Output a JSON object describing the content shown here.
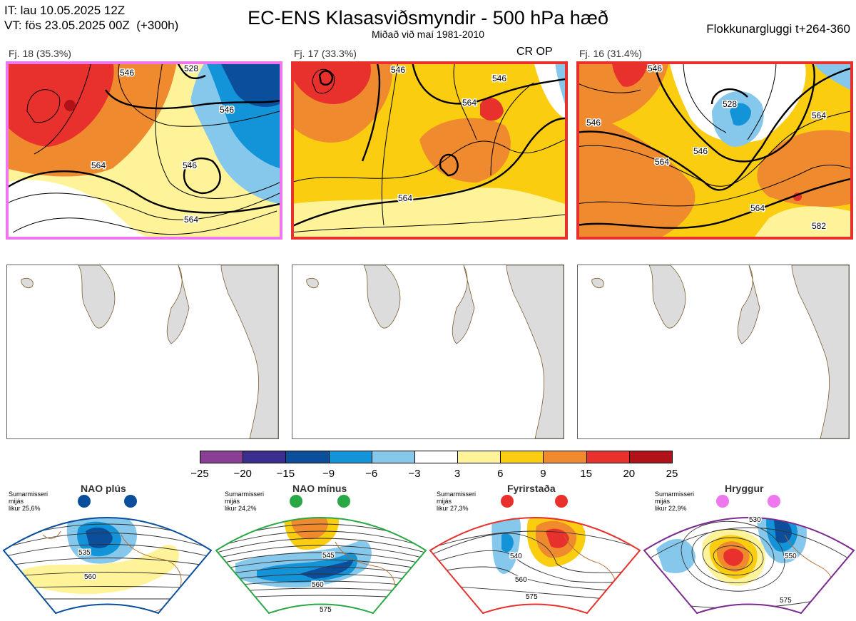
{
  "header": {
    "it_line": "IT: lau 10.05.2025 12Z",
    "vt_line": "VT: fös 23.05.2025 00Z  (+300h)",
    "title": "EC-ENS Klasasviðsmyndir - 500 hPa hæð",
    "subtitle": "Miðað við maí 1981-2010",
    "window_label": "Flokkunargluggi t+264-360"
  },
  "top_panels": [
    {
      "label": "Fj. 18 (35.3%)",
      "frame_color": "#ee77ee",
      "contours": [
        "546",
        "528",
        "546",
        "564",
        "546",
        "564"
      ]
    },
    {
      "label": "Fj. 17 (33.3%)",
      "frame_color": "#e8312d",
      "badge": "CR OP",
      "contours": [
        "546",
        "564",
        "546",
        "564"
      ]
    },
    {
      "label": "Fj. 16 (31.4%)",
      "frame_color": "#e8312d",
      "contours": [
        "546",
        "546",
        "528",
        "546",
        "564",
        "564",
        "582",
        "564"
      ]
    }
  ],
  "colorbar": {
    "colors": [
      "#8a3f96",
      "#3a2f8e",
      "#0b4f9c",
      "#1494d8",
      "#86c7ec",
      "#ffffff",
      "#fff39a",
      "#fbcd10",
      "#f08a2e",
      "#e8312d",
      "#b01218"
    ],
    "ticks": [
      "−25",
      "−20",
      "−15",
      "−9",
      "−6",
      "−3",
      "3",
      "6",
      "9",
      "15",
      "20",
      "25"
    ]
  },
  "regimes": [
    {
      "title": "NAO plús",
      "note": [
        "Sumarmisseri",
        "mijás",
        "likur 25,6%"
      ],
      "color": "#0b4f9c",
      "contours": [
        "535",
        "560"
      ]
    },
    {
      "title": "NAO mínus",
      "note": [
        "Sumarmisseri",
        "mijás",
        "likur 24,2%"
      ],
      "color": "#2aa845",
      "contours": [
        "545",
        "560",
        "575"
      ]
    },
    {
      "title": "Fyrirstaða",
      "note": [
        "Sumarmisseri",
        "mijás",
        "likur 27,3%"
      ],
      "color": "#e8312d",
      "contours": [
        "540",
        "560",
        "575"
      ]
    },
    {
      "title": "Hryggur",
      "note": [
        "Sumarmisseri",
        "mijás",
        "likur 22,9%"
      ],
      "color": "#ee77ee",
      "contours": [
        "530",
        "550",
        "575"
      ]
    }
  ]
}
